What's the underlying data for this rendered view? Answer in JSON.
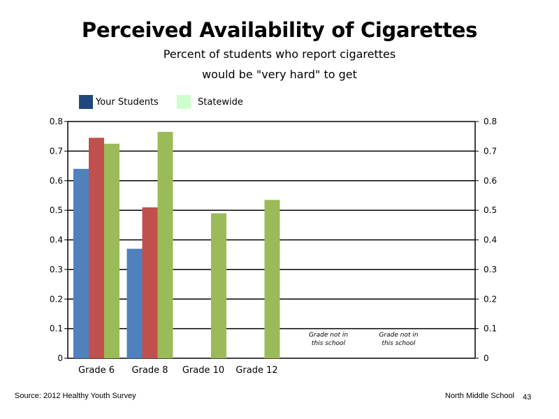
{
  "chart_data": {
    "type": "bar",
    "title": "Perceived Availability of Cigarettes",
    "subtitle_lines": [
      "Percent of students who report cigarettes",
      "would be \"very hard\" to get"
    ],
    "categories": [
      "Grade 6",
      "Grade 8",
      "Grade 10",
      "Grade 12",
      "",
      ""
    ],
    "series": [
      {
        "name": "",
        "color": "#4f81bd",
        "values": [
          0.64,
          0.37,
          null,
          null,
          null,
          null
        ]
      },
      {
        "name": "",
        "color": "#c0504d",
        "values": [
          0.745,
          0.51,
          null,
          null,
          null,
          null
        ]
      },
      {
        "name": "",
        "color": "#9bbb59",
        "values": [
          0.725,
          0.765,
          0.49,
          0.535,
          null,
          null
        ]
      }
    ],
    "ylim": [
      0,
      0.8
    ],
    "yticks": [
      "0",
      "0.1",
      "0.2",
      "0.3",
      "0.4",
      "0.5",
      "0.6",
      "0.7",
      "0.8"
    ],
    "grid": true,
    "annotations": [
      {
        "category_index": 4,
        "lines": [
          "Grade not in",
          "this school"
        ]
      },
      {
        "category_index": 5,
        "lines": [
          "Grade not in",
          "this school"
        ]
      }
    ],
    "legend": {
      "placement": "top-left",
      "entries": [
        {
          "label": "Your Students",
          "color": "#1f497d"
        },
        {
          "label": "Statewide",
          "color": "#ccffcc"
        }
      ]
    }
  },
  "footer": {
    "source": "Source: 2012 Healthy Youth Survey",
    "school": "North Middle School",
    "page_number": "43"
  }
}
